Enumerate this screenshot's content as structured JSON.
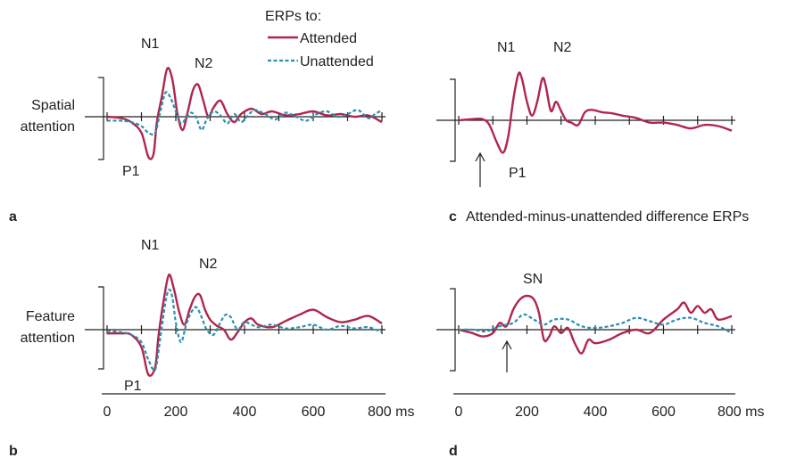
{
  "legend": {
    "title": "ERPs to:",
    "attended": "Attended",
    "unattended": "Unattended"
  },
  "colors": {
    "attended": "#b0264c",
    "unattended": "#2a8fb0"
  },
  "chart_data": [
    {
      "id": "a",
      "type": "line",
      "panel_label": "a",
      "ylabel": "Spatial attention",
      "xlim": [
        0,
        800
      ],
      "peak_labels": [
        "N1",
        "N2",
        "P1"
      ],
      "series": [
        {
          "name": "Attended",
          "x": [
            0,
            40,
            70,
            100,
            120,
            135,
            145,
            160,
            175,
            190,
            205,
            220,
            235,
            250,
            265,
            280,
            295,
            310,
            330,
            350,
            370,
            390,
            420,
            450,
            480,
            520,
            560,
            600,
            640,
            680,
            720,
            760,
            800
          ],
          "y": [
            0,
            -0.05,
            -0.2,
            -0.6,
            -1.5,
            -1.4,
            -0.2,
            0.8,
            1.8,
            1.4,
            0.1,
            -0.5,
            0.2,
            1.0,
            1.2,
            0.6,
            0.0,
            0.35,
            0.6,
            0.1,
            -0.2,
            0.1,
            0.3,
            0.1,
            0.2,
            0.05,
            0.1,
            0.2,
            0.05,
            0.1,
            0.0,
            0.05,
            -0.2
          ]
        },
        {
          "name": "Unattended",
          "x": [
            0,
            40,
            70,
            100,
            120,
            140,
            155,
            170,
            185,
            200,
            215,
            230,
            245,
            260,
            275,
            290,
            310,
            330,
            350,
            370,
            390,
            410,
            430,
            460,
            490,
            520,
            550,
            580,
            610,
            640,
            670,
            700,
            730,
            760,
            780,
            800
          ],
          "y": [
            -0.15,
            -0.15,
            -0.2,
            -0.35,
            -0.6,
            -0.6,
            0.2,
            0.9,
            0.7,
            0.2,
            -0.25,
            -0.05,
            0.15,
            -0.05,
            -0.5,
            -0.1,
            0.2,
            0.05,
            -0.25,
            0.1,
            -0.2,
            0.05,
            0.25,
            0.1,
            -0.1,
            0.15,
            0.0,
            -0.15,
            0.1,
            0.2,
            0.0,
            0.1,
            0.25,
            -0.05,
            0.1,
            0.25
          ]
        }
      ]
    },
    {
      "id": "b",
      "type": "line",
      "panel_label": "b",
      "ylabel": "Feature attention",
      "xlim": [
        0,
        800
      ],
      "peak_labels": [
        "N1",
        "N2",
        "P1"
      ],
      "series": [
        {
          "name": "Attended",
          "x": [
            0,
            40,
            70,
            100,
            120,
            140,
            150,
            165,
            180,
            195,
            210,
            225,
            240,
            255,
            270,
            285,
            300,
            320,
            340,
            360,
            380,
            400,
            420,
            440,
            480,
            520,
            560,
            600,
            640,
            680,
            720,
            760,
            800
          ],
          "y": [
            -0.15,
            -0.15,
            -0.2,
            -0.7,
            -1.8,
            -1.5,
            -0.2,
            1.2,
            2.2,
            1.6,
            0.7,
            0.2,
            0.8,
            1.3,
            1.4,
            0.8,
            0.4,
            0.15,
            0.0,
            -0.4,
            -0.1,
            0.3,
            0.45,
            0.2,
            0.1,
            0.35,
            0.6,
            0.8,
            0.5,
            0.3,
            0.4,
            0.55,
            0.25
          ]
        },
        {
          "name": "Unattended",
          "x": [
            0,
            40,
            70,
            100,
            120,
            140,
            155,
            170,
            180,
            190,
            200,
            215,
            230,
            245,
            260,
            275,
            290,
            310,
            330,
            345,
            360,
            380,
            400,
            440,
            480,
            520,
            560,
            600,
            640,
            680,
            720,
            760,
            800
          ],
          "y": [
            -0.05,
            -0.1,
            -0.2,
            -0.5,
            -1.2,
            -1.6,
            -0.3,
            1.1,
            1.6,
            1.3,
            0.3,
            -0.5,
            0.2,
            0.7,
            0.9,
            0.5,
            0.0,
            -0.2,
            0.3,
            0.6,
            0.5,
            0.0,
            0.3,
            0.1,
            0.2,
            0.05,
            0.1,
            0.2,
            0.0,
            0.15,
            0.05,
            0.1,
            -0.1
          ]
        }
      ]
    },
    {
      "id": "c",
      "type": "line",
      "panel_label": "c",
      "title": "Attended-minus-unattended difference ERPs",
      "xlim": [
        0,
        800
      ],
      "peak_labels": [
        "N1",
        "N2",
        "P1"
      ],
      "series": [
        {
          "name": "Attended",
          "x": [
            0,
            40,
            70,
            90,
            110,
            130,
            145,
            160,
            175,
            185,
            200,
            215,
            230,
            245,
            255,
            270,
            285,
            300,
            315,
            330,
            350,
            370,
            390,
            420,
            450,
            480,
            520,
            560,
            600,
            640,
            680,
            720,
            760,
            800
          ],
          "y": [
            0.0,
            0.05,
            0.05,
            -0.2,
            -0.9,
            -1.4,
            -0.7,
            0.9,
            2.0,
            1.8,
            0.8,
            0.2,
            0.8,
            1.8,
            1.5,
            0.4,
            0.8,
            0.4,
            0.0,
            -0.1,
            -0.2,
            0.35,
            0.45,
            0.35,
            0.3,
            0.2,
            0.1,
            -0.1,
            -0.1,
            -0.2,
            -0.35,
            -0.2,
            -0.25,
            -0.45
          ]
        }
      ]
    },
    {
      "id": "d",
      "type": "line",
      "panel_label": "d",
      "xlabel": "ms",
      "xticks": [
        0,
        200,
        400,
        600,
        800
      ],
      "xlim": [
        0,
        800
      ],
      "peak_labels": [
        "SN"
      ],
      "series": [
        {
          "name": "Attended",
          "x": [
            0,
            40,
            70,
            100,
            120,
            140,
            160,
            180,
            200,
            220,
            235,
            250,
            265,
            280,
            300,
            320,
            340,
            360,
            380,
            400,
            440,
            480,
            520,
            560,
            600,
            640,
            660,
            680,
            700,
            720,
            740,
            760,
            800
          ],
          "y": [
            0.0,
            -0.1,
            -0.2,
            -0.1,
            0.2,
            0.1,
            0.6,
            0.9,
            1.0,
            0.9,
            0.5,
            -0.3,
            -0.2,
            0.1,
            -0.1,
            0.05,
            -0.4,
            -0.7,
            -0.3,
            -0.4,
            -0.3,
            -0.1,
            0.0,
            -0.1,
            0.3,
            0.6,
            0.8,
            0.5,
            0.7,
            0.5,
            0.6,
            0.3,
            0.4
          ]
        },
        {
          "name": "Unattended",
          "x": [
            0,
            40,
            80,
            120,
            160,
            190,
            220,
            250,
            280,
            320,
            360,
            400,
            440,
            480,
            520,
            560,
            600,
            640,
            680,
            720,
            760,
            800
          ],
          "y": [
            0.0,
            0.0,
            -0.05,
            0.1,
            0.2,
            0.45,
            0.3,
            0.15,
            0.3,
            0.3,
            0.1,
            0.05,
            0.1,
            0.2,
            0.35,
            0.25,
            0.15,
            0.3,
            0.35,
            0.2,
            0.1,
            -0.1
          ]
        }
      ]
    }
  ]
}
